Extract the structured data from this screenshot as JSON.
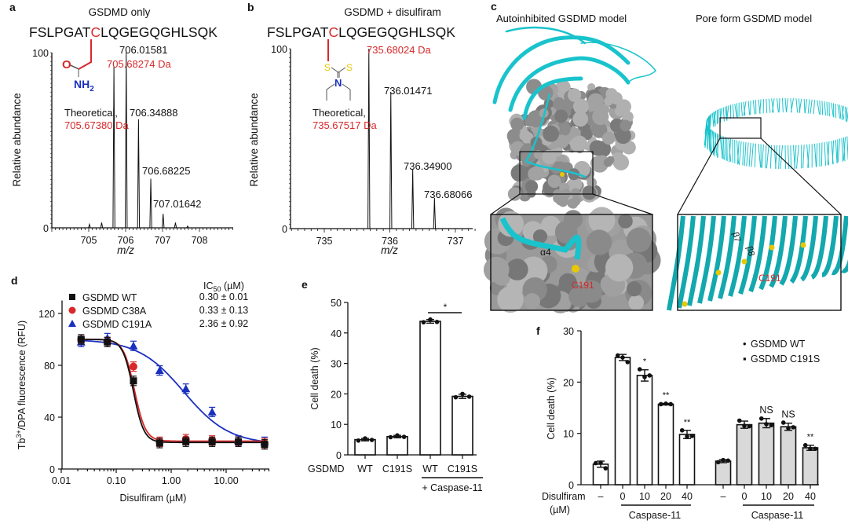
{
  "colors": {
    "red": "#d8282a",
    "blue": "#1a2fc0",
    "black": "#111111",
    "cyan": "#19c3cc",
    "gray": "#8a8a8a",
    "sulfur": "#e8c800",
    "bar_gray": "#d9d9d9"
  },
  "chart_data": [
    {
      "panel_label": "a",
      "type": "bar",
      "subtype": "mass-spectrum",
      "title": "GSDMD only",
      "sequence": {
        "before": "FSLPGAT",
        "site": "C",
        "after": "LQGEGQGHLSQK"
      },
      "structure_atoms": {
        "o": "O",
        "nh": "NH",
        "sub": "2"
      },
      "xlabel": "m/z",
      "ylabel": "Relative abundance",
      "xlim": [
        704.0,
        708.9
      ],
      "ylim": [
        0,
        100
      ],
      "xticks": [
        "705",
        "706",
        "707",
        "708"
      ],
      "yticks": [
        "0",
        "100"
      ],
      "peaks": [
        {
          "mz": 705.02,
          "intensity": 2
        },
        {
          "mz": 705.35,
          "intensity": 3
        },
        {
          "mz": 705.683,
          "intensity": 92
        },
        {
          "mz": 706.016,
          "intensity": 100
        },
        {
          "mz": 706.349,
          "intensity": 62
        },
        {
          "mz": 706.682,
          "intensity": 28
        },
        {
          "mz": 707.016,
          "intensity": 8
        },
        {
          "mz": 707.35,
          "intensity": 3
        },
        {
          "mz": 707.68,
          "intensity": 1
        }
      ],
      "labels": {
        "observed": "705.68274 Da",
        "theoretical_caption": "Theoretical,",
        "theoretical": "705.67380 Da",
        "p1": "706.01581",
        "p2": "706.34888",
        "p3": "706.68225",
        "p4": "707.01642"
      }
    },
    {
      "panel_label": "b",
      "type": "bar",
      "subtype": "mass-spectrum",
      "title": "GSDMD + disulfiram",
      "sequence": {
        "before": "FSLPGAT",
        "site": "C",
        "after": "LQGEGQGHLSQK"
      },
      "structure_atoms": {
        "s1": "S",
        "s2": "S",
        "n": "N"
      },
      "xlabel": "m/z",
      "ylabel": "Relative abundance",
      "xlim": [
        734.48,
        737.3
      ],
      "ylim": [
        0,
        100
      ],
      "xticks": [
        "735",
        "736",
        "737"
      ],
      "yticks": [
        "0",
        "100"
      ],
      "peaks": [
        {
          "mz": 735.68,
          "intensity": 100
        },
        {
          "mz": 736.015,
          "intensity": 76
        },
        {
          "mz": 736.349,
          "intensity": 33
        },
        {
          "mz": 736.681,
          "intensity": 17
        }
      ],
      "labels": {
        "observed": "735.68024 Da",
        "theoretical_caption": "Theoretical,",
        "theoretical": "735.67517 Da",
        "p1": "736.01471",
        "p2": "736.34900",
        "p3": "736.68066"
      }
    },
    {
      "panel_label": "d",
      "type": "scatter",
      "xscale": "log",
      "xlabel": "Disulfiram (µM)",
      "ylabel": {
        "base": "Tb",
        "sup": "3+",
        "rest": "/DPA fluorescence (RFU)"
      },
      "xlim": [
        0.01,
        60
      ],
      "ylim": [
        0,
        130
      ],
      "xticks": [
        {
          "v": 0.01,
          "label": "0.01"
        },
        {
          "v": 0.1,
          "label": "0.10"
        },
        {
          "v": 1,
          "label": "1.00"
        },
        {
          "v": 10,
          "label": "10.00"
        }
      ],
      "yticks": [
        {
          "v": 0,
          "label": "0"
        },
        {
          "v": 40,
          "label": "40"
        },
        {
          "v": 80,
          "label": "80"
        },
        {
          "v": 120,
          "label": "120"
        }
      ],
      "x": [
        0.023,
        0.069,
        0.206,
        0.617,
        1.85,
        5.56,
        16.7,
        50
      ],
      "legend_position": "top-left",
      "ic50_header": {
        "base": "IC",
        "sub": "50",
        "unit": " (µM)"
      },
      "series": [
        {
          "name": "GSDMD WT",
          "marker": "square",
          "color": "#111111",
          "ic50_text": "0.30 ± 0.01",
          "values": [
            100,
            98,
            68,
            20,
            21,
            21,
            21,
            19
          ],
          "fit": {
            "top": 100,
            "bottom": 20.5,
            "ec50": 0.205,
            "hill": 4.5
          }
        },
        {
          "name": "GSDMD C38A",
          "marker": "circle",
          "color": "#d8282a",
          "ic50_text": "0.33 ± 0.13",
          "values": [
            100,
            98,
            79,
            21,
            23,
            22,
            21,
            20
          ],
          "fit": {
            "top": 100,
            "bottom": 21.5,
            "ec50": 0.215,
            "hill": 4.3
          }
        },
        {
          "name": "GSDMD C191A",
          "marker": "triangle",
          "color": "#1a2fc0",
          "ic50_text": "2.36 ± 0.92",
          "values": [
            98,
            101,
            95,
            76,
            62,
            44,
            22,
            21
          ],
          "fit": {
            "top": 100,
            "bottom": 19,
            "ec50": 1.7,
            "hill": 1.05
          }
        }
      ]
    },
    {
      "panel_label": "e",
      "type": "bar",
      "ylabel": "Cell death (%)",
      "ylim": [
        0,
        50
      ],
      "yticks": [
        "0",
        "10",
        "20",
        "30",
        "40",
        "50"
      ],
      "row_label": "GSDMD",
      "categories": [
        "WT",
        "C191S",
        "WT",
        "C191S"
      ],
      "values": [
        5.0,
        6.0,
        43.8,
        19.2
      ],
      "points": [
        [
          4.7,
          5.4,
          4.9
        ],
        [
          5.8,
          6.4,
          5.9
        ],
        [
          43.5,
          44.4,
          43.6
        ],
        [
          18.9,
          20.0,
          19.1
        ]
      ],
      "errors": [
        0.4,
        0.4,
        0.6,
        0.7
      ],
      "group_label": "+ Caspase-11",
      "significance": "*"
    },
    {
      "panel_label": "f",
      "type": "bar",
      "ylabel": "Cell death (%)",
      "ylim": [
        0,
        30
      ],
      "yticks": [
        "0",
        "10",
        "20",
        "30"
      ],
      "row_label": [
        "Disulfiram",
        "(µM)"
      ],
      "categories": [
        "–",
        "0",
        "10",
        "20",
        "40"
      ],
      "group_label": "Caspase-11",
      "legend_position": "top-right",
      "series": [
        {
          "name": "GSDMD WT",
          "marker": "•",
          "fill": "#ffffff",
          "values": [
            4.0,
            24.8,
            21.3,
            15.7,
            9.8
          ],
          "errors": [
            0.6,
            0.6,
            1.1,
            0.15,
            0.8
          ],
          "points": [
            [
              4.2,
              4.3,
              3.2
            ],
            [
              25.2,
              24.8,
              23.9
            ],
            [
              22.5,
              21.0,
              21.3
            ],
            [
              15.7,
              15.8,
              15.7
            ],
            [
              10.6,
              9.4,
              9.5
            ]
          ],
          "annotations": [
            "",
            "",
            "*",
            "**",
            "**"
          ]
        },
        {
          "name": "GSDMD C191S",
          "marker": "▪",
          "fill": "#d9d9d9",
          "values": [
            4.6,
            11.7,
            12.0,
            11.3,
            7.2
          ],
          "errors": [
            0.3,
            0.7,
            0.9,
            0.7,
            0.5
          ],
          "points": [
            [
              4.4,
              4.8,
              4.7
            ],
            [
              12.5,
              11.5,
              11.4
            ],
            [
              12.9,
              11.8,
              11.6
            ],
            [
              12.1,
              11.0,
              11.2
            ],
            [
              7.7,
              7.0,
              7.0
            ]
          ],
          "annotations": [
            "",
            "",
            "NS",
            "NS",
            "**"
          ]
        }
      ]
    }
  ],
  "panel_c": {
    "panel_label": "c",
    "left_title": "Autoinhibited GSDMD model",
    "right_title": "Pore form GSDMD model",
    "left_inset": {
      "helix": "α4",
      "residue": "C191"
    },
    "right_inset": {
      "strand1": "β7",
      "strand2": "β8",
      "residue": "C191"
    }
  }
}
